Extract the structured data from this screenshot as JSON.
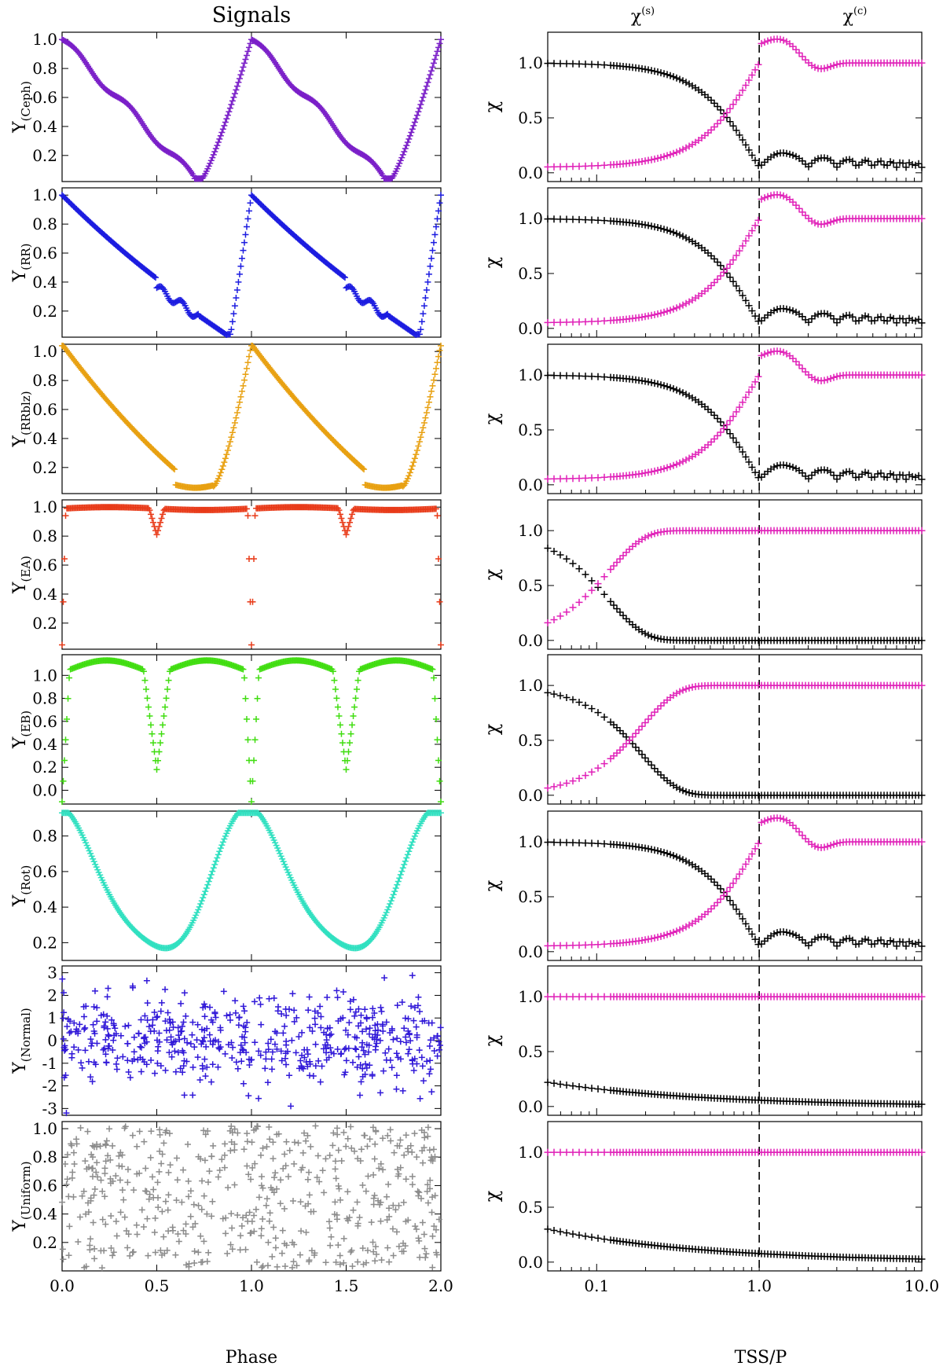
{
  "figure": {
    "left_column_title": "Signals",
    "right_column_header_s": "χ(s)",
    "right_column_header_c": "χ(c)",
    "left_xlabel": "Phase",
    "right_xlabel": "TSS/P",
    "colors": {
      "chi_s": "#000000",
      "chi_c": "#e020b8"
    }
  },
  "chart_data": [
    {
      "type": "scatter",
      "column": "left",
      "ylabel_main": "Y",
      "ylabel_sub": "(Ceph)",
      "color": "#7a1fc8",
      "signal": "ceph",
      "xlim": [
        0,
        2
      ],
      "ylim": [
        0.02,
        1.05
      ],
      "yticks": [
        0.2,
        0.4,
        0.6,
        0.8,
        1.0
      ],
      "ytick_labels": [
        "0.2",
        "0.4",
        "0.6",
        "0.8",
        "1.0"
      ]
    },
    {
      "type": "scatter",
      "column": "left",
      "ylabel_main": "Y",
      "ylabel_sub": "(RR)",
      "color": "#1c1ce0",
      "signal": "rr",
      "xlim": [
        0,
        2
      ],
      "ylim": [
        0.02,
        1.05
      ],
      "yticks": [
        0.2,
        0.4,
        0.6,
        0.8,
        1.0
      ],
      "ytick_labels": [
        "0.2",
        "0.4",
        "0.6",
        "0.8",
        "1.0"
      ]
    },
    {
      "type": "scatter",
      "column": "left",
      "ylabel_main": "Y",
      "ylabel_sub": "(RRblz)",
      "color": "#e8a010",
      "signal": "rrblz",
      "xlim": [
        0,
        2
      ],
      "ylim": [
        0.02,
        1.05
      ],
      "yticks": [
        0.2,
        0.4,
        0.6,
        0.8,
        1.0
      ],
      "ytick_labels": [
        "0.2",
        "0.4",
        "0.6",
        "0.8",
        "1.0"
      ]
    },
    {
      "type": "scatter",
      "column": "left",
      "ylabel_main": "Y",
      "ylabel_sub": "(EA)",
      "color": "#e83a18",
      "signal": "ea",
      "xlim": [
        0,
        2
      ],
      "ylim": [
        0.02,
        1.05
      ],
      "yticks": [
        0.2,
        0.4,
        0.6,
        0.8,
        1.0
      ],
      "ytick_labels": [
        "0.2",
        "0.4",
        "0.6",
        "0.8",
        "1.0"
      ]
    },
    {
      "type": "scatter",
      "column": "left",
      "ylabel_main": "Y",
      "ylabel_sub": "(EB)",
      "color": "#40dd10",
      "signal": "eb",
      "xlim": [
        0,
        2
      ],
      "ylim": [
        -0.12,
        1.18
      ],
      "yticks": [
        0.0,
        0.2,
        0.4,
        0.6,
        0.8,
        1.0
      ],
      "ytick_labels": [
        "0.0",
        "0.2",
        "0.4",
        "0.6",
        "0.8",
        "1.0"
      ]
    },
    {
      "type": "scatter",
      "column": "left",
      "ylabel_main": "Y",
      "ylabel_sub": "(Rot)",
      "color": "#30e0c0",
      "signal": "rot",
      "xlim": [
        0,
        2
      ],
      "ylim": [
        0.1,
        0.94
      ],
      "yticks": [
        0.2,
        0.4,
        0.6,
        0.8
      ],
      "ytick_labels": [
        "0.2",
        "0.4",
        "0.6",
        "0.8"
      ]
    },
    {
      "type": "scatter",
      "column": "left",
      "ylabel_main": "Y",
      "ylabel_sub": "(Normal)",
      "color": "#3018d8",
      "signal": "normal",
      "xlim": [
        0,
        2
      ],
      "ylim": [
        -3.3,
        3.3
      ],
      "yticks": [
        -3,
        -2,
        -1,
        0,
        1,
        2,
        3
      ],
      "ytick_labels": [
        "-3",
        "-2",
        "-1",
        "0",
        "1",
        "2",
        "3"
      ]
    },
    {
      "type": "scatter",
      "column": "left",
      "ylabel_main": "Y",
      "ylabel_sub": "(Uniform)",
      "color": "#8c8c8c",
      "signal": "uniform",
      "xlim": [
        0,
        2
      ],
      "ylim": [
        0.0,
        1.05
      ],
      "yticks": [
        0.2,
        0.4,
        0.6,
        0.8,
        1.0
      ],
      "ytick_labels": [
        "0.2",
        "0.4",
        "0.6",
        "0.8",
        "1.0"
      ],
      "xticks": [
        0.0,
        0.5,
        1.0,
        1.5,
        2.0
      ],
      "xtick_labels": [
        "0.0",
        "0.5",
        "1.0",
        "1.5",
        "2.0"
      ]
    },
    {
      "type": "scatter",
      "column": "right",
      "ylabel": "χ",
      "xscale": "log",
      "xlim": [
        0.05,
        10
      ],
      "ylim": [
        -0.08,
        1.28
      ],
      "yticks": [
        0.0,
        0.5,
        1.0
      ],
      "ytick_labels": [
        "0.0",
        "0.5",
        "1.0"
      ],
      "vline_x": 1.0,
      "series": [
        {
          "name": "χ(s)",
          "profile": "sinc",
          "period_factor": 1.0
        },
        {
          "name": "χ(c)",
          "profile": "sinc_complement"
        }
      ]
    },
    {
      "type": "scatter",
      "column": "right",
      "ylabel": "χ",
      "xscale": "log",
      "xlim": [
        0.05,
        10
      ],
      "ylim": [
        -0.08,
        1.28
      ],
      "yticks": [
        0.0,
        0.5,
        1.0
      ],
      "ytick_labels": [
        "0.0",
        "0.5",
        "1.0"
      ],
      "vline_x": 1.0,
      "series": [
        {
          "name": "χ(s)",
          "profile": "sinc"
        },
        {
          "name": "χ(c)",
          "profile": "sinc_complement"
        }
      ]
    },
    {
      "type": "scatter",
      "column": "right",
      "ylabel": "χ",
      "xscale": "log",
      "xlim": [
        0.05,
        10
      ],
      "ylim": [
        -0.08,
        1.28
      ],
      "yticks": [
        0.0,
        0.5,
        1.0
      ],
      "ytick_labels": [
        "0.0",
        "0.5",
        "1.0"
      ],
      "vline_x": 1.0,
      "series": [
        {
          "name": "χ(s)",
          "profile": "sinc"
        },
        {
          "name": "χ(c)",
          "profile": "sinc_complement"
        }
      ]
    },
    {
      "type": "scatter",
      "column": "right",
      "ylabel": "χ",
      "xscale": "log",
      "xlim": [
        0.05,
        10
      ],
      "ylim": [
        -0.08,
        1.28
      ],
      "yticks": [
        0.0,
        0.5,
        1.0
      ],
      "ytick_labels": [
        "0.0",
        "0.5",
        "1.0"
      ],
      "vline_x": 1.0,
      "series": [
        {
          "name": "χ(s)",
          "profile": "fast_decay",
          "scale": 0.1
        },
        {
          "name": "χ(c)",
          "profile": "fast_rise",
          "scale": 0.1
        }
      ]
    },
    {
      "type": "scatter",
      "column": "right",
      "ylabel": "χ",
      "xscale": "log",
      "xlim": [
        0.05,
        10
      ],
      "ylim": [
        -0.08,
        1.28
      ],
      "yticks": [
        0.0,
        0.5,
        1.0
      ],
      "ytick_labels": [
        "0.0",
        "0.5",
        "1.0"
      ],
      "vline_x": 1.0,
      "series": [
        {
          "name": "χ(s)",
          "profile": "fast_decay",
          "scale": 0.16
        },
        {
          "name": "χ(c)",
          "profile": "fast_rise",
          "scale": 0.16
        }
      ]
    },
    {
      "type": "scatter",
      "column": "right",
      "ylabel": "χ",
      "xscale": "log",
      "xlim": [
        0.05,
        10
      ],
      "ylim": [
        -0.08,
        1.28
      ],
      "yticks": [
        0.0,
        0.5,
        1.0
      ],
      "ytick_labels": [
        "0.0",
        "0.5",
        "1.0"
      ],
      "vline_x": 1.0,
      "series": [
        {
          "name": "χ(s)",
          "profile": "sinc"
        },
        {
          "name": "χ(c)",
          "profile": "sinc_complement"
        }
      ]
    },
    {
      "type": "scatter",
      "column": "right",
      "ylabel": "χ",
      "xscale": "log",
      "xlim": [
        0.05,
        10
      ],
      "ylim": [
        -0.08,
        1.28
      ],
      "yticks": [
        0.0,
        0.5,
        1.0
      ],
      "ytick_labels": [
        "0.0",
        "0.5",
        "1.0"
      ],
      "vline_x": 1.0,
      "series": [
        {
          "name": "χ(s)",
          "profile": "slow_decay",
          "start": 0.22
        },
        {
          "name": "χ(c)",
          "profile": "flat",
          "level": 1.0
        }
      ]
    },
    {
      "type": "scatter",
      "column": "right",
      "ylabel": "χ",
      "xscale": "log",
      "xlim": [
        0.05,
        10
      ],
      "ylim": [
        -0.08,
        1.28
      ],
      "yticks": [
        0.0,
        0.5,
        1.0
      ],
      "ytick_labels": [
        "0.0",
        "0.5",
        "1.0"
      ],
      "xticks": [
        0.1,
        1.0,
        10.0
      ],
      "xtick_labels": [
        "0.1",
        "1.0",
        "10.0"
      ],
      "vline_x": 1.0,
      "series": [
        {
          "name": "χ(s)",
          "profile": "slow_decay",
          "start": 0.3
        },
        {
          "name": "χ(c)",
          "profile": "flat",
          "level": 1.0
        }
      ]
    }
  ]
}
